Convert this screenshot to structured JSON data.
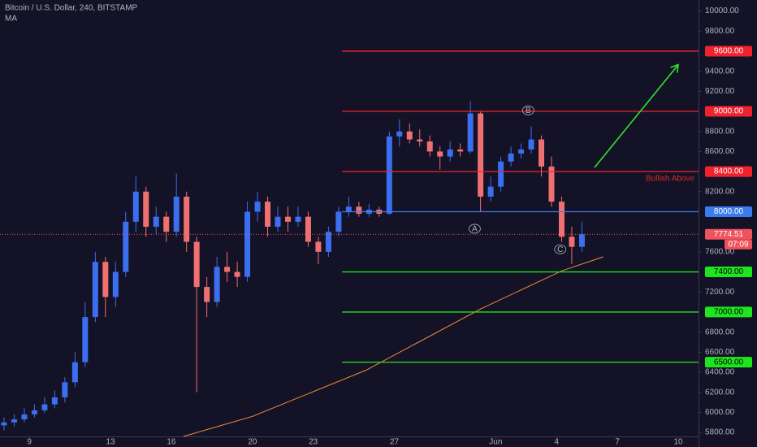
{
  "chart_data": {
    "type": "candlestick",
    "title": "Bitcoin / U.S. Dollar, 240, BITSTAMP",
    "subtitle": "MA",
    "up_color": "#3b6ff0",
    "down_color": "#ef7070",
    "x": [
      7.75,
      8.25,
      8.75,
      9.25,
      9.75,
      10.25,
      10.75,
      11.25,
      11.75,
      12.25,
      12.75,
      13.25,
      13.75,
      14.25,
      14.75,
      15.25,
      15.75,
      16.25,
      16.75,
      17.25,
      17.75,
      18.25,
      18.75,
      19.25,
      19.75,
      20.25,
      20.75,
      21.25,
      21.75,
      22.25,
      22.75,
      23.25,
      23.75,
      24.25,
      24.75,
      25.25,
      25.75,
      26.25,
      26.75,
      27.25,
      27.75,
      28.25,
      28.75,
      29.25,
      29.75,
      30.25,
      30.75,
      31.25,
      31.75,
      32.25,
      32.75,
      33.25,
      33.75,
      34.25,
      34.75,
      35.25,
      35.75,
      36.25
    ],
    "ohlc": [
      [
        5870,
        5950,
        5820,
        5900
      ],
      [
        5900,
        5980,
        5860,
        5930
      ],
      [
        5930,
        6040,
        5900,
        5980
      ],
      [
        5980,
        6080,
        5950,
        6020
      ],
      [
        6020,
        6150,
        5990,
        6080
      ],
      [
        6080,
        6220,
        6040,
        6150
      ],
      [
        6150,
        6350,
        6100,
        6300
      ],
      [
        6300,
        6600,
        6250,
        6500
      ],
      [
        6500,
        7100,
        6450,
        6950
      ],
      [
        6950,
        7600,
        6900,
        7500
      ],
      [
        7500,
        7550,
        6950,
        7150
      ],
      [
        7150,
        7500,
        7050,
        7400
      ],
      [
        7400,
        8000,
        7350,
        7900
      ],
      [
        7900,
        8350,
        7800,
        8200
      ],
      [
        8200,
        8250,
        7750,
        7850
      ],
      [
        7850,
        8050,
        7780,
        7950
      ],
      [
        7950,
        8000,
        7700,
        7800
      ],
      [
        7800,
        8380,
        7750,
        8150
      ],
      [
        8150,
        8200,
        7600,
        7700
      ],
      [
        7700,
        7750,
        6200,
        7250
      ],
      [
        7250,
        7350,
        6950,
        7100
      ],
      [
        7100,
        7550,
        7050,
        7450
      ],
      [
        7450,
        7600,
        7300,
        7400
      ],
      [
        7400,
        7500,
        7250,
        7350
      ],
      [
        7350,
        8100,
        7300,
        8000
      ],
      [
        8000,
        8200,
        7900,
        8100
      ],
      [
        8100,
        8150,
        7750,
        7850
      ],
      [
        7850,
        8050,
        7800,
        7950
      ],
      [
        7950,
        8050,
        7800,
        7900
      ],
      [
        7900,
        8050,
        7850,
        7950
      ],
      [
        7950,
        8000,
        7650,
        7700
      ],
      [
        7700,
        7750,
        7480,
        7600
      ],
      [
        7600,
        7850,
        7550,
        7800
      ],
      [
        7800,
        8050,
        7750,
        8000
      ],
      [
        8000,
        8150,
        7950,
        8050
      ],
      [
        8050,
        8100,
        7950,
        7980
      ],
      [
        7980,
        8080,
        7950,
        8020
      ],
      [
        8020,
        8050,
        7950,
        7980
      ],
      [
        7980,
        8800,
        7970,
        8750
      ],
      [
        8750,
        8920,
        8650,
        8800
      ],
      [
        8800,
        8880,
        8680,
        8720
      ],
      [
        8720,
        8820,
        8650,
        8700
      ],
      [
        8700,
        8760,
        8550,
        8600
      ],
      [
        8600,
        8650,
        8420,
        8550
      ],
      [
        8550,
        8700,
        8500,
        8620
      ],
      [
        8620,
        8680,
        8550,
        8600
      ],
      [
        8600,
        9100,
        8580,
        8980
      ],
      [
        8980,
        9000,
        8000,
        8150
      ],
      [
        8150,
        8350,
        8100,
        8250
      ],
      [
        8250,
        8550,
        8200,
        8500
      ],
      [
        8500,
        8650,
        8450,
        8580
      ],
      [
        8580,
        8680,
        8530,
        8620
      ],
      [
        8620,
        8850,
        8580,
        8720
      ],
      [
        8720,
        8760,
        8350,
        8450
      ],
      [
        8450,
        8550,
        8050,
        8100
      ],
      [
        8100,
        8150,
        7700,
        7750
      ],
      [
        7750,
        7850,
        7480,
        7650
      ],
      [
        7650,
        7900,
        7600,
        7774.51
      ]
    ],
    "ma": {
      "color": "#f08a3c",
      "x": [
        16.6,
        20,
        25.6,
        31.25,
        35.25,
        37.3
      ],
      "values": [
        5760,
        5960,
        6420,
        7030,
        7410,
        7550
      ]
    },
    "xlim": [
      7.55,
      42.0
    ],
    "ylim": [
      5760,
      10110
    ],
    "xticks": [
      9,
      13,
      16,
      20,
      23,
      27,
      {
        "value": 32,
        "label": "Jun"
      },
      {
        "value": 35,
        "label": "4"
      },
      {
        "value": 38,
        "label": "7"
      },
      {
        "value": 41,
        "label": "10"
      }
    ],
    "yticks": [
      {
        "value": 5800,
        "label": "5800.00"
      },
      {
        "value": 6000,
        "label": "6000.00"
      },
      {
        "value": 6200,
        "label": "6200.00"
      },
      {
        "value": 6400,
        "label": "6400.00"
      },
      {
        "value": 6600,
        "label": "6600.00"
      },
      {
        "value": 6800,
        "label": "6800.00"
      },
      {
        "value": 7200,
        "label": "7200.00"
      },
      {
        "value": 7600,
        "label": "7600.00"
      },
      {
        "value": 8200,
        "label": "8200.00"
      },
      {
        "value": 8600,
        "label": "8600.00"
      },
      {
        "value": 8800,
        "label": "8800.00"
      },
      {
        "value": 9200,
        "label": "9200.00"
      },
      {
        "value": 9400,
        "label": "9400.00"
      },
      {
        "value": 9800,
        "label": "9800.00"
      },
      {
        "value": 10000,
        "label": "10000.00"
      }
    ],
    "levels_start": 24.42,
    "levels": [
      {
        "value": 9600,
        "label": "9600.00",
        "color": "#f0222e",
        "text_color": "#ffffff"
      },
      {
        "value": 9000,
        "label": "9000.00",
        "color": "#f0222e",
        "text_color": "#ffffff"
      },
      {
        "value": 8400,
        "label": "8400.00",
        "color": "#f0222e",
        "text_color": "#ffffff"
      },
      {
        "value": 8000,
        "label": "8000.00",
        "color": "#3a7bf0",
        "text_color": "#ffffff"
      },
      {
        "value": 7400,
        "label": "7400.00",
        "color": "#1ee61e",
        "text_color": "#000000"
      },
      {
        "value": 7000,
        "label": "7000.00",
        "color": "#1ee61e",
        "text_color": "#000000"
      },
      {
        "value": 6500,
        "label": "6500.00",
        "color": "#1ee61e",
        "text_color": "#000000"
      }
    ],
    "last_price": {
      "value": 7774.51,
      "label": "7774.51",
      "color": "#f0525e"
    },
    "countdown": "07:09",
    "annotations": [
      {
        "text": "A",
        "x": 30.96,
        "y": 7830
      },
      {
        "text": "B",
        "x": 33.6,
        "y": 9010
      },
      {
        "text": "C",
        "x": 35.18,
        "y": 7625
      }
    ],
    "note": {
      "text": "Bullish Above",
      "x": 40.6,
      "y": 8330,
      "color": "#d42a2a"
    },
    "arrow": {
      "x": [
        36.87,
        41.0
      ],
      "y": [
        8440,
        9465
      ],
      "color": "#2ee62e"
    }
  }
}
